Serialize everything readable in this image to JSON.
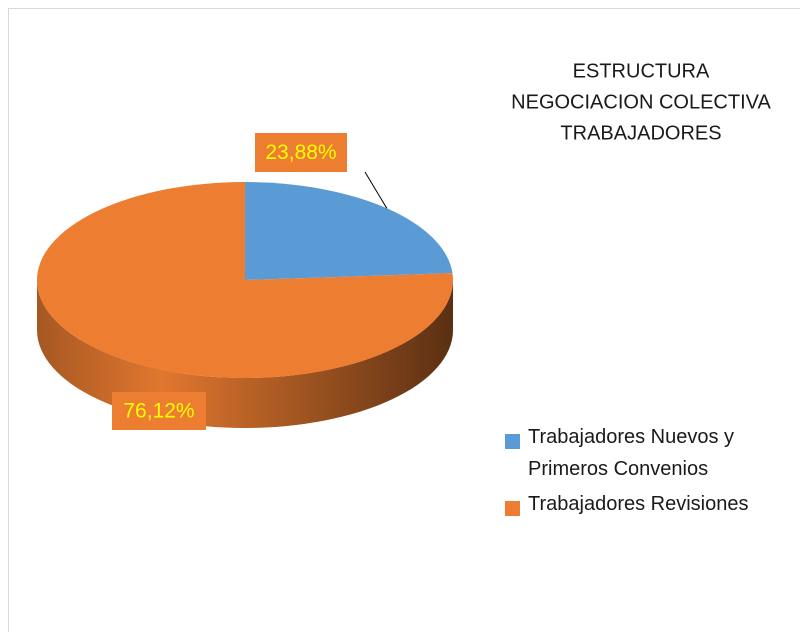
{
  "chart_data": {
    "type": "pie",
    "title": [
      "ESTRUCTURA",
      "NEGOCIACION COLECTIVA",
      "TRABAJADORES"
    ],
    "categories": [
      "Trabajadores Nuevos y Primeros Convenios",
      "Trabajadores Revisiones"
    ],
    "values": [
      23.88,
      76.12
    ],
    "value_labels": [
      "23,88%",
      "76,12%"
    ],
    "colors": [
      "#5b9bd5",
      "#ed7d31"
    ],
    "label_color": "#ffff00",
    "legend": "right"
  }
}
